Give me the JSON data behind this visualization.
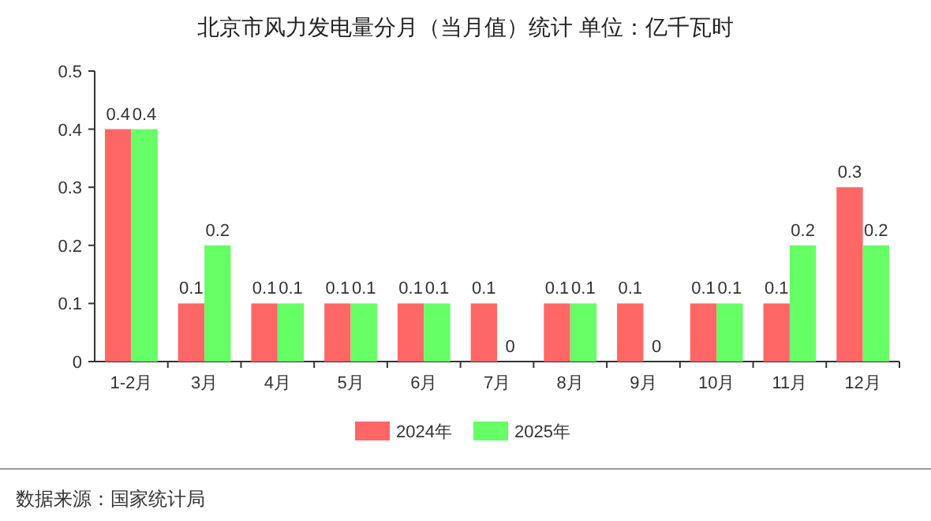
{
  "chart_data": {
    "type": "bar",
    "title": "北京市风力发电量分月（当月值）统计  单位：亿千瓦时",
    "categories": [
      "1-2月",
      "3月",
      "4月",
      "5月",
      "6月",
      "7月",
      "8月",
      "9月",
      "10月",
      "11月",
      "12月"
    ],
    "series": [
      {
        "name": "2024年",
        "color": "#ff6666",
        "values": [
          0.4,
          0.1,
          0.1,
          0.1,
          0.1,
          0.1,
          0.1,
          0.1,
          0.1,
          0.1,
          0.3
        ]
      },
      {
        "name": "2025年",
        "color": "#66ff66",
        "values": [
          0.4,
          0.2,
          0.1,
          0.1,
          0.1,
          0,
          0.1,
          0,
          0.1,
          0.2,
          0.2
        ]
      }
    ],
    "ylim": [
      0,
      0.5
    ],
    "yticks": [
      0,
      0.1,
      0.2,
      0.3,
      0.4,
      0.5
    ],
    "data_labels": true,
    "legend": "bottom",
    "annotations": [
      "数据来源：国家统计局"
    ]
  }
}
